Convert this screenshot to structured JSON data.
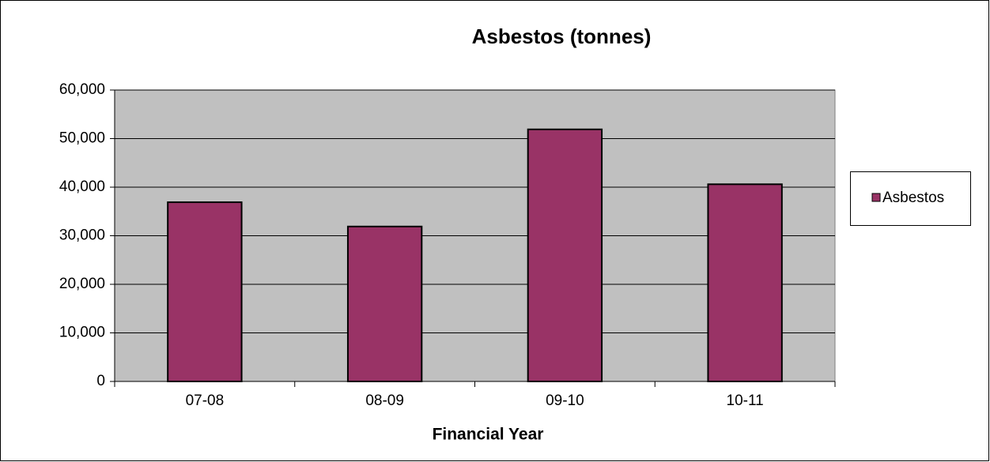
{
  "chart_data": {
    "type": "bar",
    "title": "Asbestos (tonnes)",
    "x_label": "Financial Year",
    "categories": [
      "07-08",
      "08-09",
      "09-10",
      "10-11"
    ],
    "series": [
      {
        "name": "Asbestos",
        "color": "#993366",
        "values": [
          36900,
          31900,
          51900,
          40600
        ]
      }
    ],
    "ylim": [
      0,
      60000
    ],
    "yticks": [
      0,
      {
        "value": 10000,
        "label": "10,000"
      },
      {
        "value": 20000,
        "label": "20,000"
      },
      {
        "value": 30000,
        "label": "30,000"
      },
      {
        "value": 40000,
        "label": "40,000"
      },
      {
        "value": 50000,
        "label": "50,000"
      },
      {
        "value": 60000,
        "label": "60,000"
      }
    ],
    "grid": true,
    "legend": "right",
    "plot_background": "#c0c0c0"
  }
}
